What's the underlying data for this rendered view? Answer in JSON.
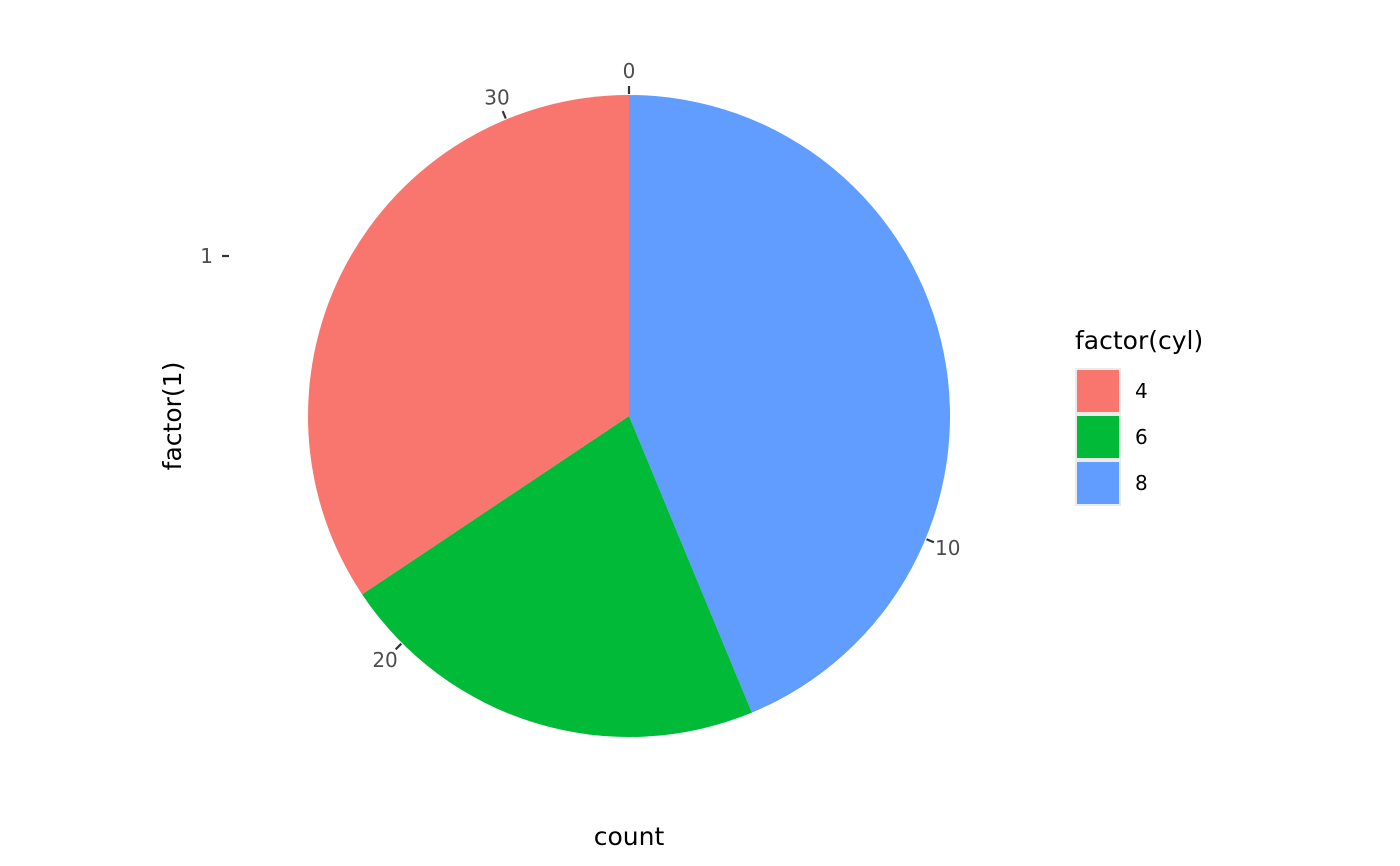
{
  "chart_data": {
    "type": "pie",
    "xlabel": "count",
    "ylabel": "factor(1)",
    "y_categories": [
      "1"
    ],
    "theta_ticks": [
      0,
      10,
      20,
      30
    ],
    "total": 32,
    "slices": [
      {
        "category": "4",
        "value": 11,
        "color": "#F8766D"
      },
      {
        "category": "6",
        "value": 7,
        "color": "#00BA38"
      },
      {
        "category": "8",
        "value": 14,
        "color": "#619CFF"
      }
    ],
    "legend": {
      "title": "factor(cyl)",
      "position": "right",
      "entries": [
        {
          "label": "4",
          "color": "#F8766D"
        },
        {
          "label": "6",
          "color": "#00BA38"
        },
        {
          "label": "8",
          "color": "#619CFF"
        }
      ]
    },
    "grid": false,
    "direction": "clockwise from top",
    "stacking": "first category at end"
  }
}
